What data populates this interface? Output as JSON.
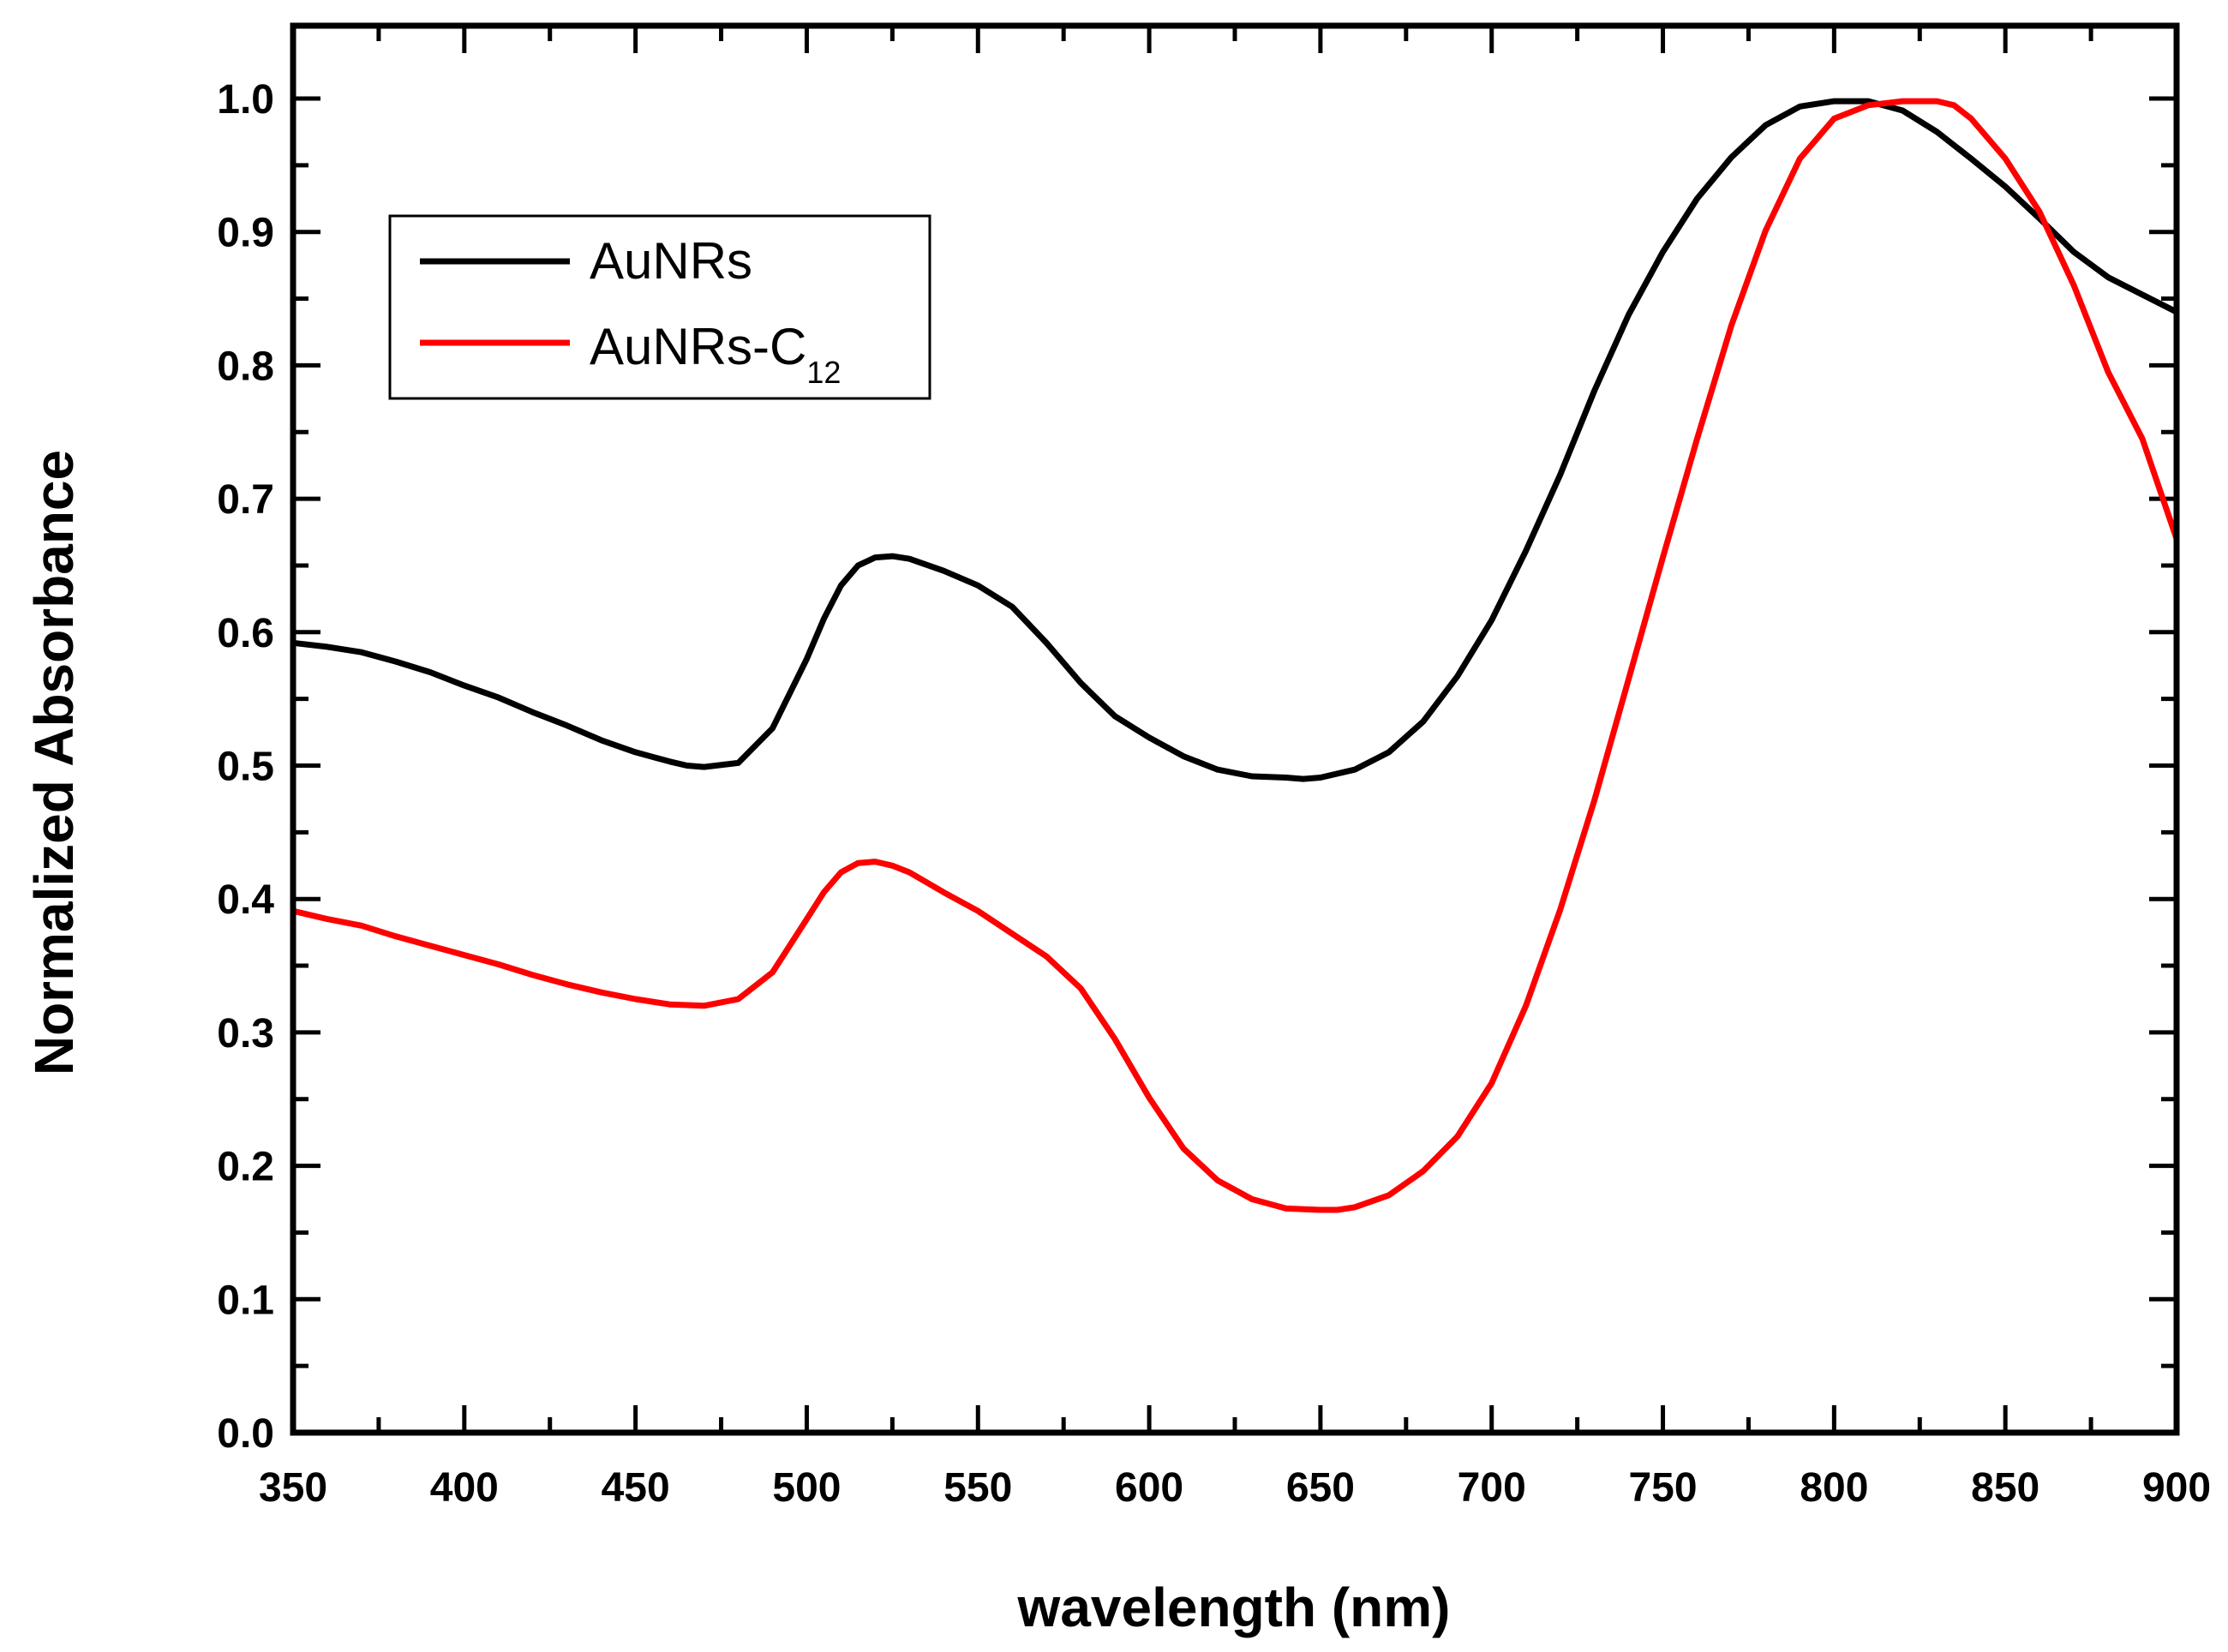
{
  "chart_data": {
    "type": "line",
    "title": "",
    "xlabel": "wavelength (nm)",
    "ylabel": "Normalized Absorbance",
    "xlim": [
      350,
      900
    ],
    "ylim": [
      0.0,
      1.05
    ],
    "x_ticks": [
      350,
      400,
      450,
      500,
      550,
      600,
      650,
      700,
      750,
      800,
      850,
      900
    ],
    "x_tick_labels": [
      "350",
      "400",
      "450",
      "500",
      "550",
      "600",
      "650",
      "700",
      "750",
      "800",
      "850",
      "900"
    ],
    "y_ticks": [
      0.0,
      0.1,
      0.2,
      0.3,
      0.4,
      0.5,
      0.6,
      0.7,
      0.8,
      0.9,
      1.0
    ],
    "y_tick_labels": [
      "0.0",
      "0.1",
      "0.2",
      "0.3",
      "0.4",
      "0.5",
      "0.6",
      "0.7",
      "0.8",
      "0.9",
      "1.0"
    ],
    "grid": false,
    "legend_position": "top-left",
    "series": [
      {
        "name": "AuNRs",
        "color": "#000000",
        "x": [
          350,
          360,
          370,
          380,
          390,
          400,
          410,
          420,
          430,
          440,
          450,
          460,
          465,
          470,
          480,
          490,
          500,
          505,
          510,
          515,
          520,
          525,
          530,
          540,
          550,
          560,
          570,
          580,
          590,
          600,
          610,
          620,
          630,
          640,
          645,
          650,
          660,
          670,
          680,
          690,
          700,
          710,
          720,
          730,
          740,
          750,
          760,
          770,
          780,
          790,
          800,
          810,
          820,
          830,
          840,
          850,
          860,
          870,
          880,
          890,
          900
        ],
        "y": [
          0.592,
          0.589,
          0.585,
          0.578,
          0.57,
          0.56,
          0.551,
          0.54,
          0.53,
          0.519,
          0.51,
          0.503,
          0.5,
          0.499,
          0.502,
          0.528,
          0.58,
          0.61,
          0.635,
          0.65,
          0.656,
          0.657,
          0.655,
          0.646,
          0.635,
          0.619,
          0.592,
          0.562,
          0.537,
          0.521,
          0.507,
          0.497,
          0.492,
          0.491,
          0.49,
          0.491,
          0.497,
          0.51,
          0.533,
          0.567,
          0.609,
          0.661,
          0.718,
          0.781,
          0.838,
          0.885,
          0.925,
          0.956,
          0.98,
          0.994,
          0.998,
          0.998,
          0.991,
          0.975,
          0.955,
          0.934,
          0.91,
          0.885,
          0.866,
          0.853,
          0.84
        ]
      },
      {
        "name": "AuNRs-C12",
        "color": "#ff0000",
        "x": [
          350,
          360,
          370,
          380,
          390,
          400,
          410,
          420,
          430,
          440,
          450,
          460,
          470,
          480,
          490,
          500,
          505,
          510,
          515,
          520,
          525,
          530,
          540,
          550,
          560,
          570,
          580,
          590,
          600,
          610,
          620,
          630,
          640,
          650,
          655,
          660,
          670,
          680,
          690,
          700,
          710,
          720,
          730,
          740,
          750,
          760,
          770,
          780,
          790,
          800,
          810,
          820,
          825,
          830,
          835,
          840,
          850,
          860,
          870,
          880,
          890,
          900
        ],
        "y": [
          0.391,
          0.385,
          0.38,
          0.372,
          0.365,
          0.358,
          0.351,
          0.343,
          0.336,
          0.33,
          0.325,
          0.321,
          0.32,
          0.325,
          0.345,
          0.385,
          0.405,
          0.42,
          0.427,
          0.428,
          0.425,
          0.42,
          0.405,
          0.391,
          0.374,
          0.357,
          0.333,
          0.295,
          0.251,
          0.213,
          0.189,
          0.175,
          0.168,
          0.167,
          0.167,
          0.169,
          0.178,
          0.196,
          0.222,
          0.262,
          0.32,
          0.392,
          0.474,
          0.565,
          0.656,
          0.745,
          0.83,
          0.901,
          0.955,
          0.985,
          0.995,
          0.998,
          0.998,
          0.998,
          0.995,
          0.985,
          0.955,
          0.915,
          0.86,
          0.795,
          0.745,
          0.67
        ]
      }
    ]
  },
  "legend": {
    "items": [
      {
        "label": "AuNRs",
        "sub": ""
      },
      {
        "label": "AuNRs-C",
        "sub": "12"
      }
    ]
  }
}
